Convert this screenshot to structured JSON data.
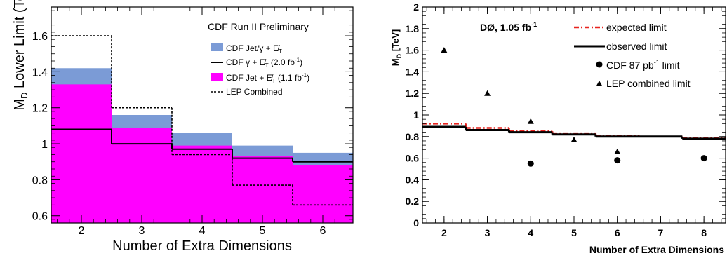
{
  "chart_data": [
    {
      "type": "step",
      "xlabel": "Number of Extra Dimensions",
      "ylabel_main": "M",
      "ylabel_sub": "D",
      "ylabel_rest": " Lower Limit (TeV)",
      "xlim": [
        1.5,
        6.5
      ],
      "ylim": [
        0.56,
        1.76
      ],
      "xticks": [
        "2",
        "3",
        "4",
        "5",
        "6"
      ],
      "yticks": [
        "0.6",
        "0.8",
        "1",
        "1.2",
        "1.4",
        "1.6"
      ],
      "bins": [
        2,
        3,
        4,
        5,
        6
      ],
      "annotation": "CDF Run II Preliminary",
      "series": [
        {
          "name": "CDF  Jet/γ + E̸T",
          "style": "filled",
          "color": "#7b9bd6",
          "values": [
            1.42,
            1.16,
            1.06,
            0.99,
            0.95
          ]
        },
        {
          "name": "CDF Jet + E̸T (1.1 fb⁻¹)",
          "style": "filled",
          "color": "#ff00ff",
          "values": [
            1.33,
            1.09,
            0.99,
            0.93,
            0.88
          ]
        },
        {
          "name": "CDF  γ + E̸T  (2.0 fb⁻¹)",
          "style": "solid",
          "color": "#000000",
          "values": [
            1.08,
            1.0,
            0.97,
            0.92,
            0.9
          ]
        },
        {
          "name": "LEP Combined",
          "style": "dashed",
          "color": "#000000",
          "values": [
            1.6,
            1.2,
            0.94,
            0.77,
            0.66
          ]
        }
      ],
      "legend": {
        "l1a": "CDF  Jet/γ + ",
        "l1b": "E̸",
        "l1c": "T",
        "l2a": "CDF  γ + ",
        "l2b": "E̸",
        "l2c": "T",
        "l2d": "  (2.0 fb",
        "l2e": "-1",
        "l2f": ")",
        "l3a": "CDF Jet + ",
        "l3b": "E̸",
        "l3c": "T",
        "l3d": " (1.1 fb",
        "l3e": "-1",
        "l3f": ")",
        "l4": "LEP Combined"
      }
    },
    {
      "type": "step",
      "xlabel": "Number of Extra Dimensions",
      "ylabel_main": "M",
      "ylabel_sub": "D",
      "ylabel_rest": " [TeV]",
      "xlim": [
        1.5,
        8.5
      ],
      "ylim": [
        0,
        2
      ],
      "xticks": [
        "2",
        "3",
        "4",
        "5",
        "6",
        "7",
        "8"
      ],
      "yticks": [
        "0",
        "0.2",
        "0.4",
        "0.6",
        "0.8",
        "1",
        "1.2",
        "1.4",
        "1.6",
        "1.8",
        "2"
      ],
      "title_main": "DØ, 1.05 fb",
      "title_sup": "-1",
      "bins": [
        2,
        3,
        4,
        5,
        6,
        7,
        8
      ],
      "series": [
        {
          "name": "expected limit",
          "style": "dashdot",
          "color": "#e8231f",
          "values": [
            0.92,
            0.88,
            0.85,
            0.83,
            0.81,
            0.8,
            0.79
          ]
        },
        {
          "name": "observed limit",
          "style": "solid",
          "color": "#000000",
          "values": [
            0.89,
            0.86,
            0.84,
            0.82,
            0.8,
            0.8,
            0.78
          ]
        },
        {
          "name": "CDF 87 pb⁻¹ limit",
          "style": "circle",
          "color": "#000000",
          "x": [
            4,
            6,
            8
          ],
          "values": [
            0.55,
            0.58,
            0.6
          ]
        },
        {
          "name": "LEP combined limit",
          "style": "triangle",
          "color": "#000000",
          "x": [
            2,
            3,
            4,
            5,
            6
          ],
          "values": [
            1.6,
            1.2,
            0.94,
            0.77,
            0.66
          ]
        }
      ],
      "legend": {
        "l1": "expected limit",
        "l2": "observed limit",
        "l3a": "CDF 87 pb",
        "l3b": "-1",
        "l3c": " limit",
        "l4": "LEP combined limit"
      }
    }
  ]
}
